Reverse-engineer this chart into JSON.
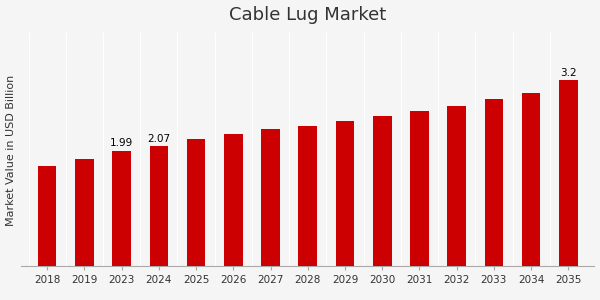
{
  "title": "Cable Lug Market",
  "ylabel": "Market Value in USD Billion",
  "years": [
    "2018",
    "2019",
    "2023",
    "2024",
    "2025",
    "2026",
    "2027",
    "2028",
    "2029",
    "2030",
    "2031",
    "2032",
    "2033",
    "2034",
    "2035"
  ],
  "values": [
    1.72,
    1.84,
    1.99,
    2.07,
    2.18,
    2.28,
    2.36,
    2.41,
    2.5,
    2.58,
    2.66,
    2.76,
    2.87,
    2.97,
    3.2
  ],
  "bar_color": "#cc0000",
  "annotated_bars": {
    "2": {
      "label": "1.99"
    },
    "3": {
      "label": "2.07"
    },
    "14": {
      "label": "3.2"
    }
  },
  "background_color": "#f5f5f5",
  "plot_bg_color": "#f5f5f5",
  "ylim": [
    0,
    4.0
  ],
  "title_fontsize": 13,
  "ylabel_fontsize": 8,
  "tick_fontsize": 7.5,
  "bar_width": 0.5,
  "bottom_bar_color": "#cc0000",
  "bottom_bar_height": 0.025
}
